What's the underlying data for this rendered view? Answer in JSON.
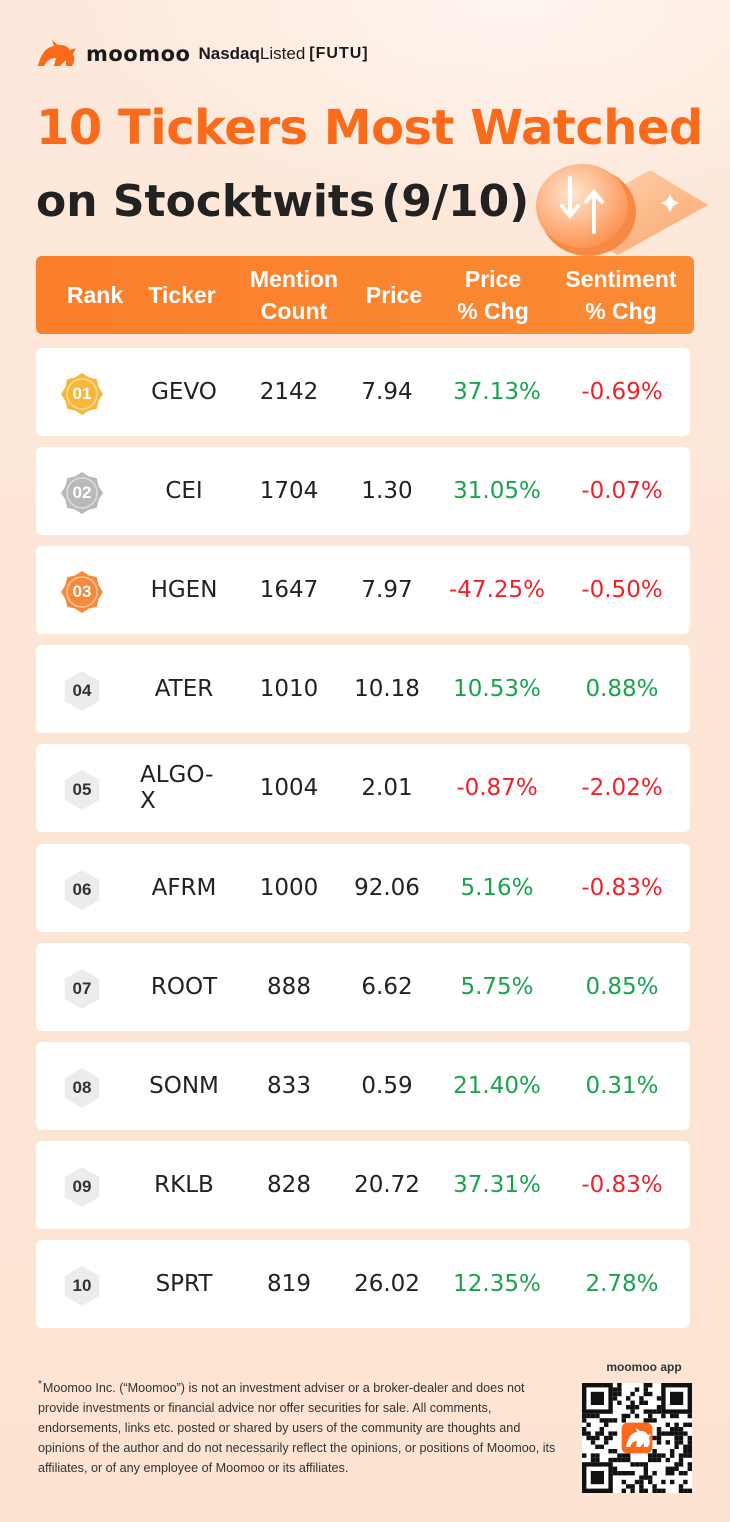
{
  "brand": {
    "name": "moomoo",
    "nasdaq_prefix": "Nasdaq",
    "nasdaq_suffix": "Listed",
    "ticker": "[FUTU]"
  },
  "title": {
    "line1": "10 Tickers Most Watched",
    "line2": "on Stocktwits",
    "date": "(9/10)"
  },
  "columns": {
    "rank": "Rank",
    "ticker": "Ticker",
    "mention_1": "Mention",
    "mention_2": "Count",
    "price": "Price",
    "price_chg_1": "Price",
    "price_chg_2": "% Chg",
    "sent_chg_1": "Sentiment",
    "sent_chg_2": "% Chg"
  },
  "rows": [
    {
      "rank": "01",
      "ticker": "GEVO",
      "mentions": "2142",
      "price": "7.94",
      "price_chg": "37.13%",
      "sentiment_chg": "-0.69%"
    },
    {
      "rank": "02",
      "ticker": "CEI",
      "mentions": "1704",
      "price": "1.30",
      "price_chg": "31.05%",
      "sentiment_chg": "-0.07%"
    },
    {
      "rank": "03",
      "ticker": "HGEN",
      "mentions": "1647",
      "price": "7.97",
      "price_chg": "-47.25%",
      "sentiment_chg": "-0.50%"
    },
    {
      "rank": "04",
      "ticker": "ATER",
      "mentions": "1010",
      "price": "10.18",
      "price_chg": "10.53%",
      "sentiment_chg": "0.88%"
    },
    {
      "rank": "05",
      "ticker": "ALGO-X",
      "mentions": "1004",
      "price": "2.01",
      "price_chg": "-0.87%",
      "sentiment_chg": "-2.02%"
    },
    {
      "rank": "06",
      "ticker": "AFRM",
      "mentions": "1000",
      "price": "92.06",
      "price_chg": "5.16%",
      "sentiment_chg": "-0.83%"
    },
    {
      "rank": "07",
      "ticker": "ROOT",
      "mentions": "888",
      "price": "6.62",
      "price_chg": "5.75%",
      "sentiment_chg": "0.85%"
    },
    {
      "rank": "08",
      "ticker": "SONM",
      "mentions": "833",
      "price": "0.59",
      "price_chg": "21.40%",
      "sentiment_chg": "0.31%"
    },
    {
      "rank": "09",
      "ticker": "RKLB",
      "mentions": "828",
      "price": "20.72",
      "price_chg": "37.31%",
      "sentiment_chg": "-0.83%"
    },
    {
      "rank": "10",
      "ticker": "SPRT",
      "mentions": "819",
      "price": "26.02",
      "price_chg": "12.35%",
      "sentiment_chg": "2.78%"
    }
  ],
  "colors": {
    "accent": "#fa6a1b",
    "positive": "#1aa34f",
    "negative": "#f0212b",
    "gold": "#f6b73c",
    "silver": "#b9b9b9",
    "bronze": "#f58a3c",
    "plain_badge": "#ececec"
  },
  "footer": {
    "marker": "*",
    "disclaimer": "Moomoo Inc. (“Moomoo”) is not an investment adviser or a broker-dealer and does not provide investments or financial advice nor offer securities for sale. All comments, endorsements, links etc. posted or shared by users of the community are thoughts and opinions of the author and do not necessarily reflect the opinions, or positions of Moomoo, its affiliates, or of any employee of Moomoo or its affiliates.",
    "app_label": "moomoo app",
    "qr_icon": "qr-code-icon"
  }
}
